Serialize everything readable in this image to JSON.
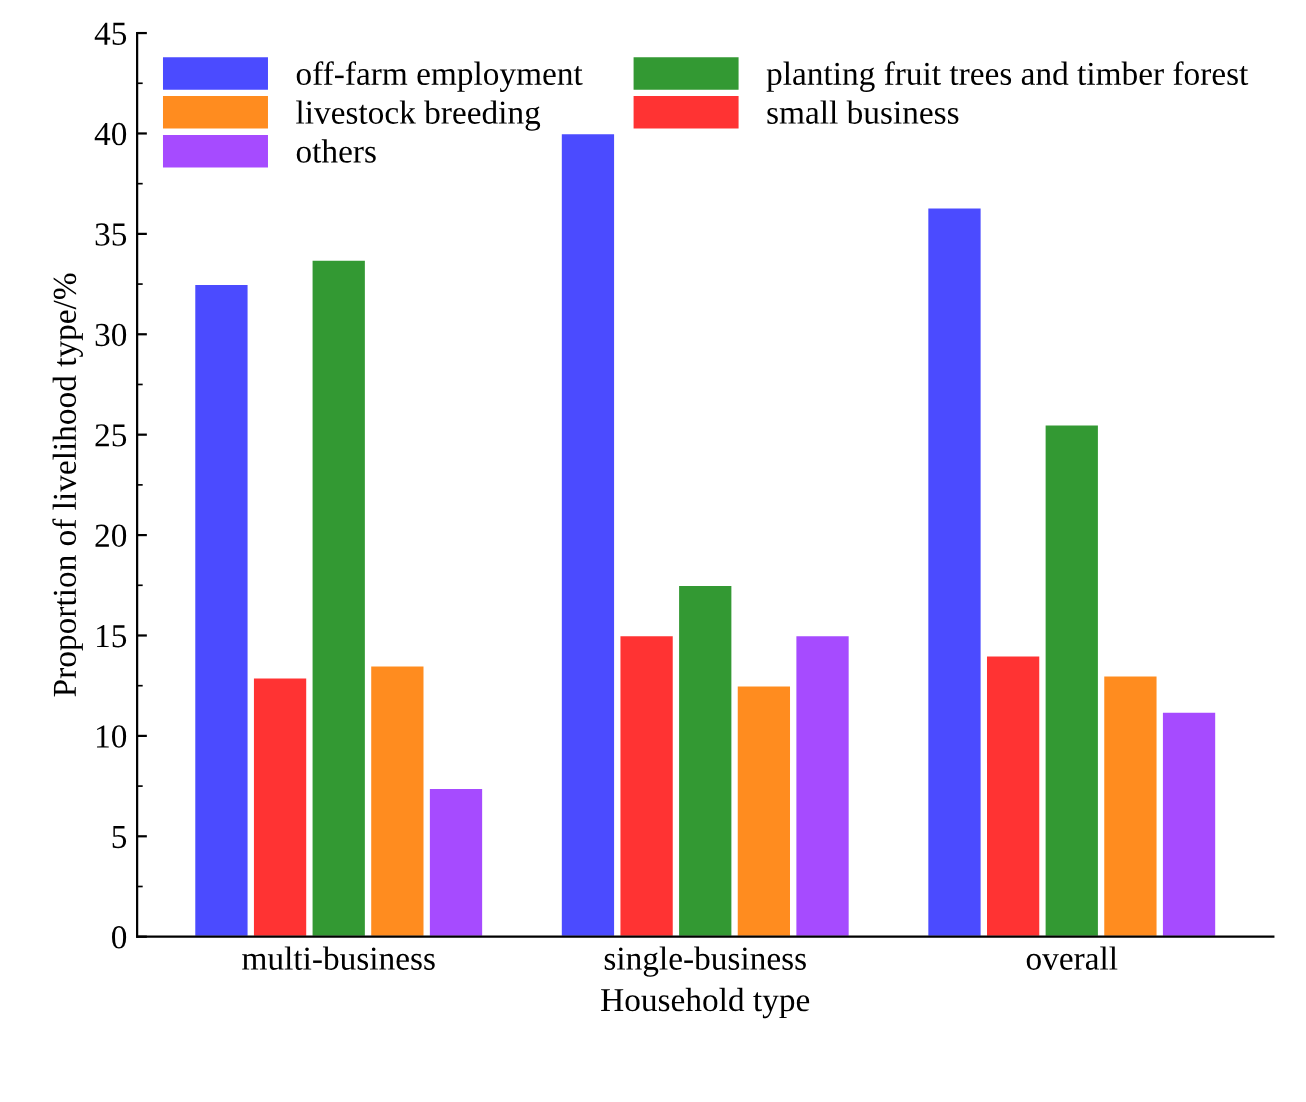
{
  "chart_data": {
    "type": "bar",
    "xlabel": "Household type",
    "ylabel": "Proportion of livelihood type/%",
    "categories": [
      "multi-business",
      "single-business",
      "overall"
    ],
    "series": [
      {
        "name": "off-farm employment",
        "color": "#4b4bff",
        "values": [
          32.5,
          40,
          36.3
        ]
      },
      {
        "name": "small business",
        "color": "#ff3333",
        "values": [
          12.9,
          15,
          14
        ]
      },
      {
        "name": "planting fruit trees and timber forest",
        "color": "#339933",
        "values": [
          33.7,
          17.5,
          25.5
        ]
      },
      {
        "name": "livestock breeding",
        "color": "#ff8c1f",
        "values": [
          13.5,
          12.5,
          13
        ]
      },
      {
        "name": "others",
        "color": "#a64bff",
        "values": [
          7.4,
          15,
          11.2
        ]
      }
    ],
    "ylim": [
      0,
      45
    ],
    "yticks": [
      0,
      5,
      10,
      15,
      20,
      25,
      30,
      35,
      40,
      45
    ],
    "grid": false,
    "legend": "top"
  }
}
